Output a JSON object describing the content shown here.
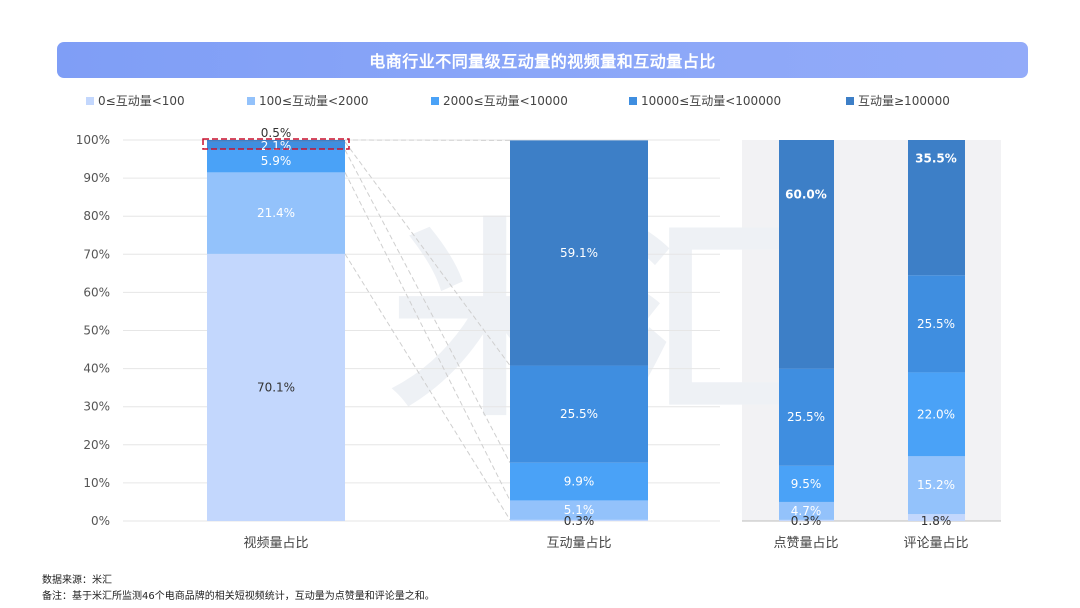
{
  "title": "电商行业不同量级互动量的视频量和互动量占比",
  "footer": {
    "source": "数据来源：米汇",
    "note": "备注：基于米汇所监测46个电商品牌的相关短视频统计，互动量为点赞量和评论量之和。"
  },
  "watermark": "米汇",
  "colors": {
    "s1": "#c3d7fd",
    "s2": "#93c2fb",
    "s3": "#4aa2f7",
    "s4": "#3f8ee0",
    "s5": "#3d7fc7",
    "grid": "#e6e6e6",
    "panel": "#f2f2f4",
    "dashed_box": "#c8102e"
  },
  "chart_data": {
    "type": "bar",
    "stacked": true,
    "title": "电商行业不同量级互动量的视频量和互动量占比",
    "categories": [
      "视频量占比",
      "互动量占比",
      "点赞量占比",
      "评论量占比"
    ],
    "series": [
      {
        "name": "0≤互动量<100",
        "values": [
          70.1,
          0.3,
          0.3,
          1.8
        ],
        "labels": [
          "70.1%",
          "0.3%",
          "0.3%",
          "1.8%"
        ]
      },
      {
        "name": "100≤互动量<2000",
        "values": [
          21.4,
          5.1,
          4.7,
          15.2
        ],
        "labels": [
          "21.4%",
          "5.1%",
          "4.7%",
          "15.2%"
        ]
      },
      {
        "name": "2000≤互动量<10000",
        "values": [
          5.9,
          9.9,
          9.5,
          22.0
        ],
        "labels": [
          "5.9%",
          "9.9%",
          "9.5%",
          "22.0%"
        ]
      },
      {
        "name": "10000≤互动量<100000",
        "values": [
          2.1,
          25.5,
          25.5,
          25.5
        ],
        "labels": [
          "2.1%",
          "25.5%",
          "25.5%",
          "25.5%"
        ]
      },
      {
        "name": "互动量≥100000",
        "values": [
          0.5,
          59.1,
          60.0,
          35.5
        ],
        "labels": [
          "0.5%",
          "59.1%",
          "60.0%",
          "35.5%"
        ]
      }
    ],
    "yticks": [
      "0%",
      "10%",
      "20%",
      "30%",
      "40%",
      "50%",
      "60%",
      "70%",
      "80%",
      "90%",
      "100%"
    ],
    "ylim": [
      0,
      100
    ],
    "grid": true,
    "legend": "top"
  }
}
